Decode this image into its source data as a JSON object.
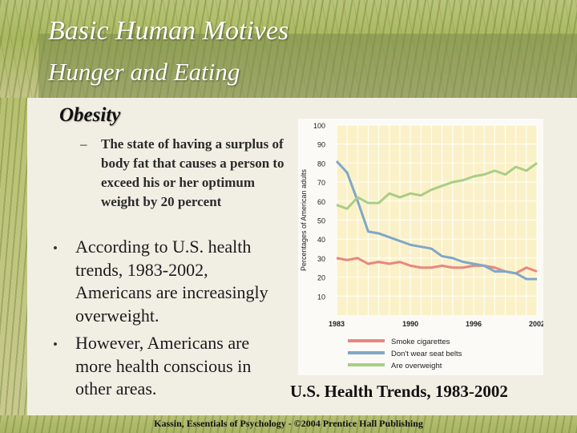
{
  "slide": {
    "title": "Basic Human Motives",
    "subtitle": "Hunger and Eating",
    "section_heading": "Obesity",
    "definition_dash": "–",
    "definition": "The state of having a surplus of body fat that causes a person to exceed his or her optimum weight by 20 percent",
    "bullets": [
      {
        "marker": "•",
        "text": "According to U.S. health trends, 1983-2002, Americans are increasingly overweight."
      },
      {
        "marker": "•",
        "text": "However, Americans are more health conscious in other areas."
      }
    ],
    "chart_caption": "U.S. Health Trends, 1983-2002",
    "footer": "Kassin, Essentials of Psychology - ©2004 Prentice Hall Publishing"
  },
  "chart_data": {
    "type": "line",
    "title": "",
    "xlabel": "",
    "ylabel": "Percentages of American adults",
    "x": [
      1983,
      1984,
      1985,
      1986,
      1987,
      1988,
      1989,
      1990,
      1991,
      1992,
      1993,
      1994,
      1995,
      1996,
      1997,
      1998,
      1999,
      2000,
      2001,
      2002
    ],
    "x_ticks": [
      "1983",
      "1990",
      "1996",
      "2002"
    ],
    "y_ticks": [
      "10",
      "20",
      "30",
      "40",
      "50",
      "60",
      "70",
      "80",
      "90",
      "100"
    ],
    "ylim": [
      0,
      100
    ],
    "grid": true,
    "legend_position": "bottom",
    "series": [
      {
        "name": "Smoke cigarettes",
        "color": "#e8877f",
        "values": [
          30,
          29,
          30,
          27,
          28,
          27,
          28,
          26,
          25,
          25,
          26,
          25,
          25,
          26,
          26,
          25,
          23,
          22,
          25,
          23
        ]
      },
      {
        "name": "Don't wear seat belts",
        "color": "#7fa7c8",
        "values": [
          81,
          75,
          60,
          44,
          43,
          41,
          39,
          37,
          36,
          35,
          31,
          30,
          28,
          27,
          26,
          23,
          23,
          22,
          19,
          19
        ]
      },
      {
        "name": "Are overweight",
        "color": "#a9cd86",
        "values": [
          58,
          56,
          62,
          59,
          59,
          64,
          62,
          64,
          63,
          66,
          68,
          70,
          71,
          73,
          74,
          76,
          74,
          78,
          76,
          80
        ]
      }
    ]
  }
}
